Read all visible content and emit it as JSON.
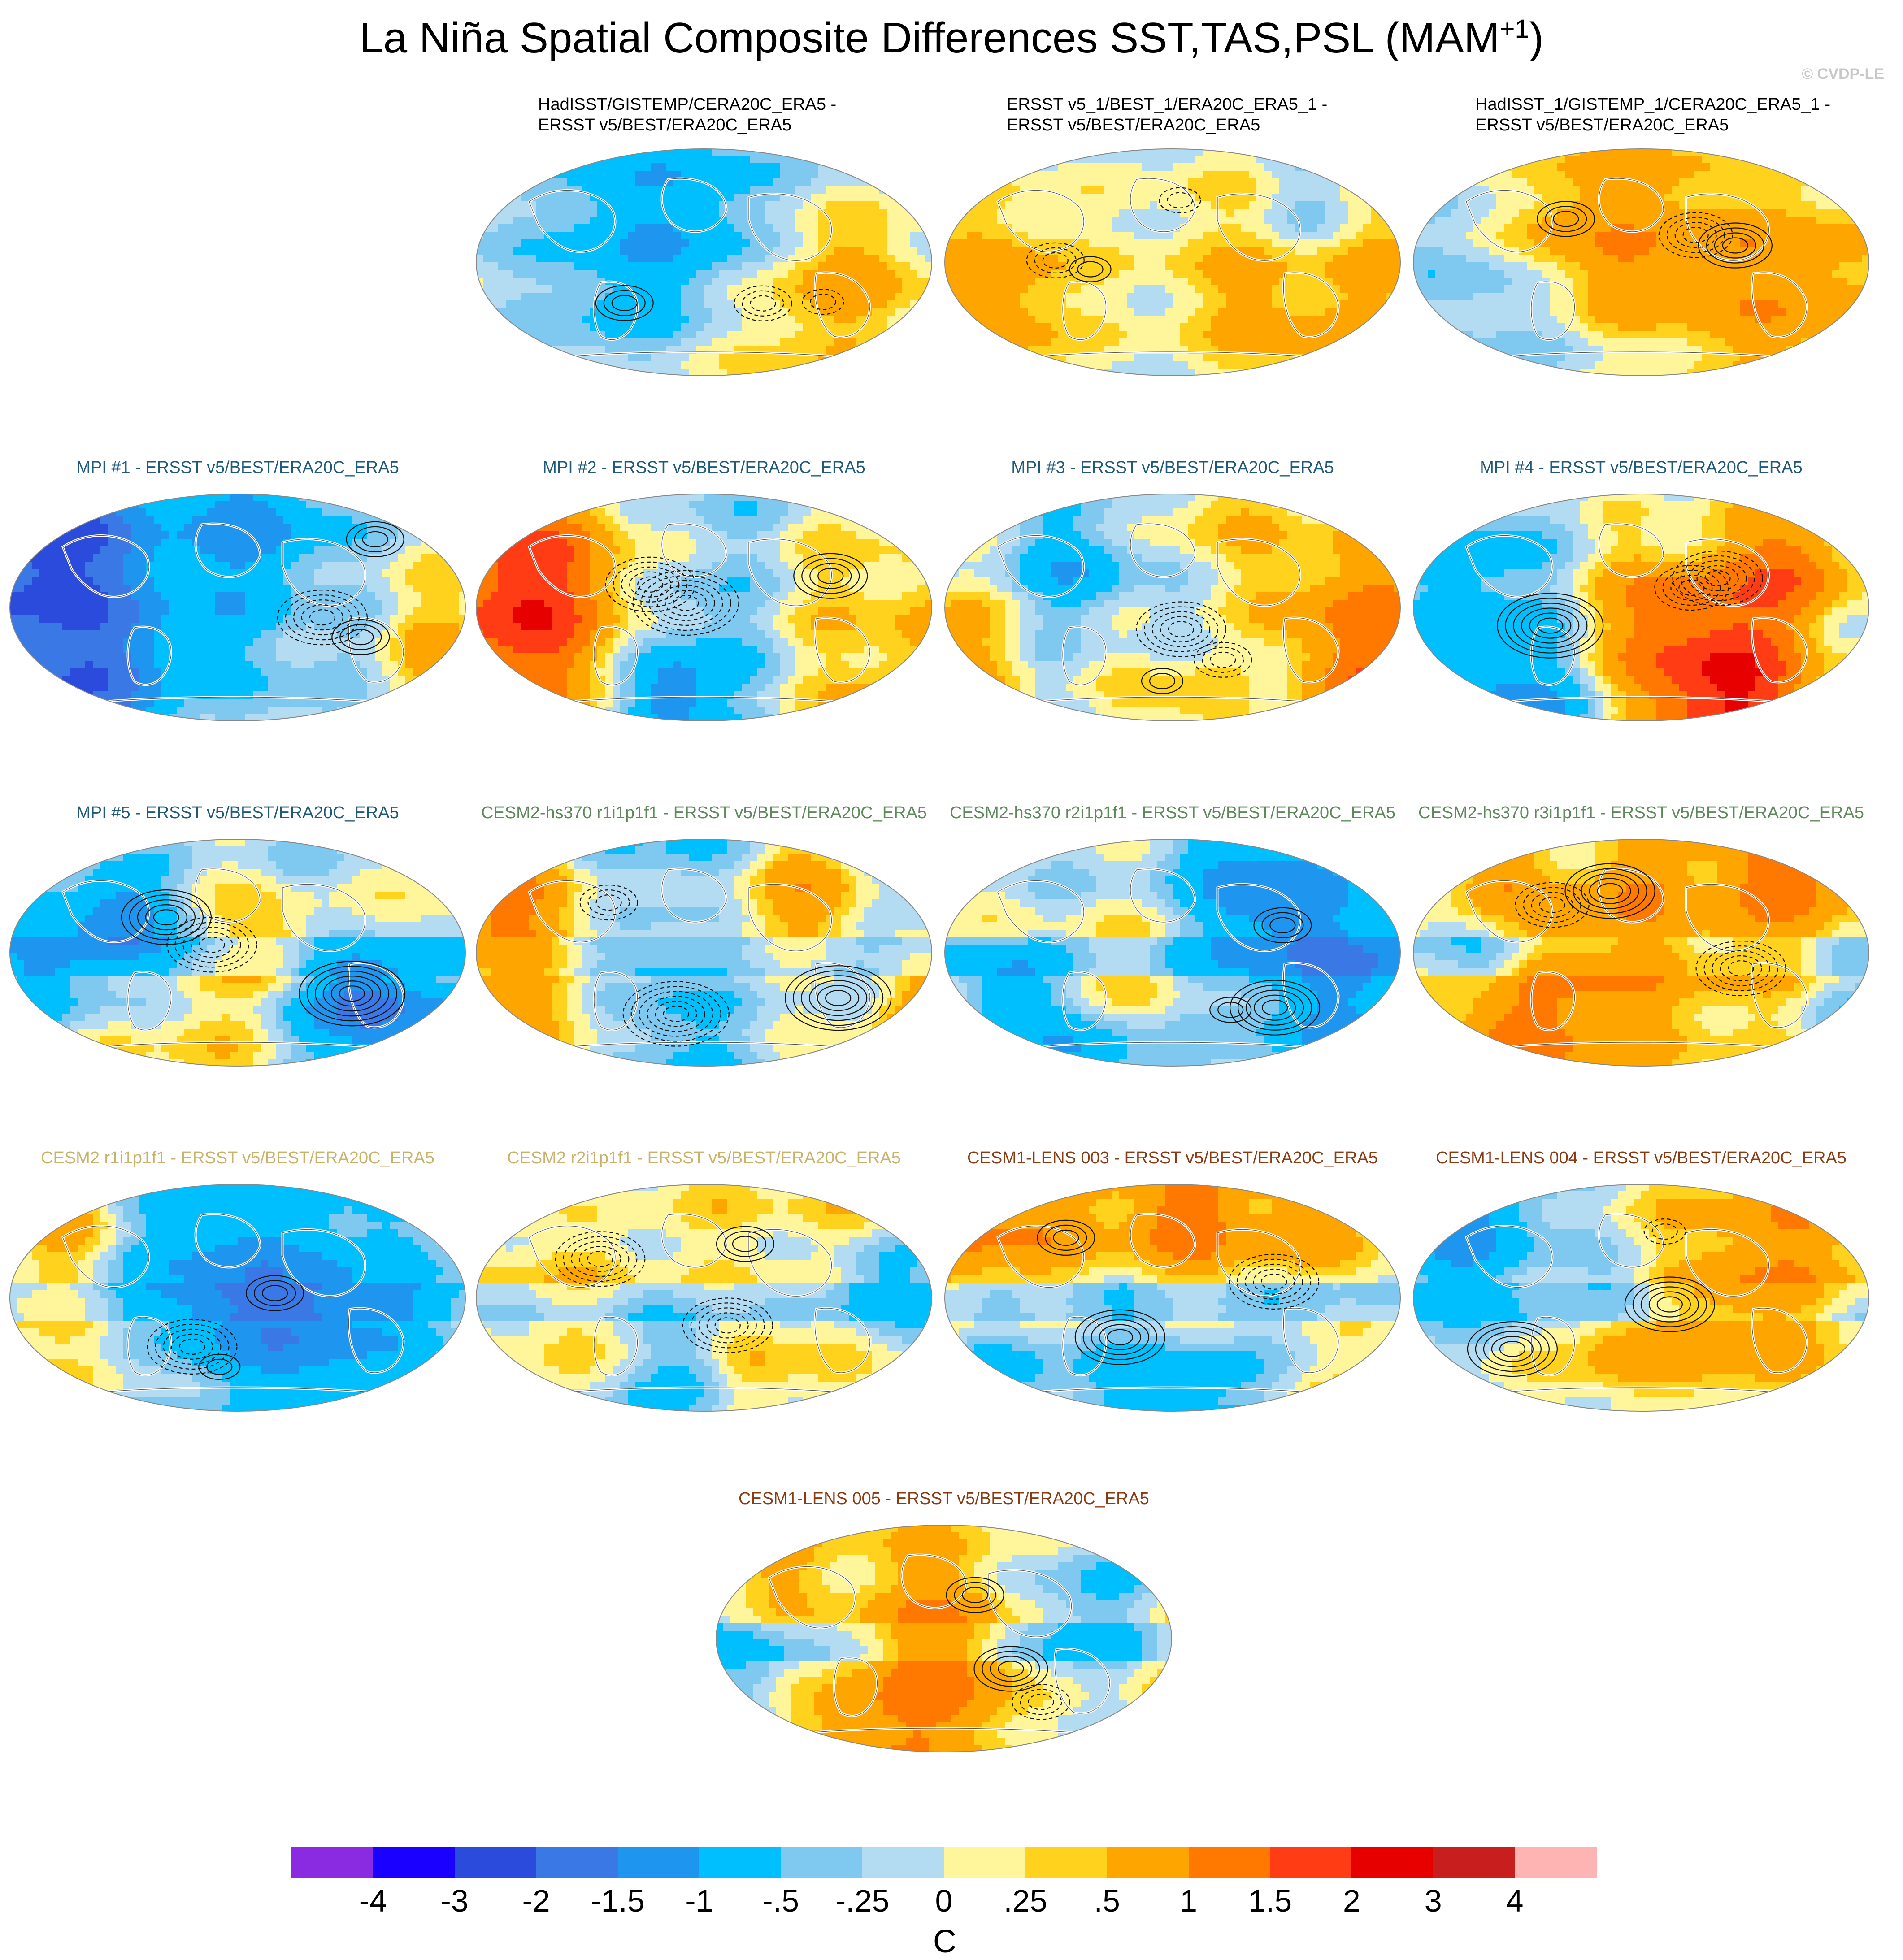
{
  "title": {
    "main": "La Niña Spatial Composite Differences SST,TAS,PSL (MAM",
    "sup": "+1",
    "close": ")"
  },
  "watermark": "© CVDP-LE",
  "panels": [
    {
      "line1": "HadISST/GISTEMP/CERA20C_ERA5 -",
      "line2": "ERSST v5/BEST/ERA20C_ERA5",
      "color": "#000000",
      "seed": 3,
      "amp": 0.45
    },
    {
      "line1": "ERSST v5_1/BEST_1/ERA20C_ERA5_1 -",
      "line2": "ERSST v5/BEST/ERA20C_ERA5",
      "color": "#000000",
      "seed": 7,
      "amp": 0.5
    },
    {
      "line1": "HadISST_1/GISTEMP_1/CERA20C_ERA5_1 -",
      "line2": "ERSST v5/BEST/ERA20C_ERA5",
      "color": "#000000",
      "seed": 11,
      "amp": 0.45
    },
    {
      "line1": "MPI #1 - ERSST v5/BEST/ERA20C_ERA5",
      "line2": "",
      "color": "#1f5a7a",
      "seed": 13,
      "amp": 0.9
    },
    {
      "line1": "MPI #2 - ERSST v5/BEST/ERA20C_ERA5",
      "line2": "",
      "color": "#1f5a7a",
      "seed": 17,
      "amp": 0.9
    },
    {
      "line1": "MPI #3 - ERSST v5/BEST/ERA20C_ERA5",
      "line2": "",
      "color": "#1f5a7a",
      "seed": 19,
      "amp": 0.9
    },
    {
      "line1": "MPI #4 - ERSST v5/BEST/ERA20C_ERA5",
      "line2": "",
      "color": "#1f5a7a",
      "seed": 23,
      "amp": 0.9
    },
    {
      "line1": "MPI #5 - ERSST v5/BEST/ERA20C_ERA5",
      "line2": "",
      "color": "#1f5a7a",
      "seed": 29,
      "amp": 0.95
    },
    {
      "line1": "CESM2-hs370 r1i1p1f1 - ERSST v5/BEST/ERA20C_ERA5",
      "line2": "",
      "color": "#5d8a5a",
      "seed": 31,
      "amp": 0.85
    },
    {
      "line1": "CESM2-hs370 r2i1p1f1 - ERSST v5/BEST/ERA20C_ERA5",
      "line2": "",
      "color": "#5d8a5a",
      "seed": 37,
      "amp": 0.85
    },
    {
      "line1": "CESM2-hs370 r3i1p1f1 - ERSST v5/BEST/ERA20C_ERA5",
      "line2": "",
      "color": "#5d8a5a",
      "seed": 41,
      "amp": 0.85
    },
    {
      "line1": "CESM2 r1i1p1f1 - ERSST v5/BEST/ERA20C_ERA5",
      "line2": "",
      "color": "#c9b36a",
      "seed": 43,
      "amp": 0.85
    },
    {
      "line1": "CESM2 r2i1p1f1 - ERSST v5/BEST/ERA20C_ERA5",
      "line2": "",
      "color": "#c9b36a",
      "seed": 47,
      "amp": 0.85
    },
    {
      "line1": "CESM1-LENS 003 - ERSST v5/BEST/ERA20C_ERA5",
      "line2": "",
      "color": "#8b3a12",
      "seed": 53,
      "amp": 0.8
    },
    {
      "line1": "CESM1-LENS 004 - ERSST v5/BEST/ERA20C_ERA5",
      "line2": "",
      "color": "#8b3a12",
      "seed": 59,
      "amp": 0.8
    },
    {
      "line1": "CESM1-LENS 005 - ERSST v5/BEST/ERA20C_ERA5",
      "line2": "",
      "color": "#8b3a12",
      "seed": 61,
      "amp": 0.8
    }
  ],
  "colorbar": {
    "colors": [
      "#8a2be2",
      "#1a00ff",
      "#2a4bdc",
      "#3a78e6",
      "#1e96f0",
      "#00bfff",
      "#7fc8f0",
      "#b3dcf2",
      "#fff59a",
      "#ffd21e",
      "#ffa500",
      "#ff7800",
      "#ff3c14",
      "#e60000",
      "#c81e1e",
      "#ffb4b4"
    ],
    "labels": [
      "-4",
      "-3",
      "-2",
      "-1.5",
      "-1",
      "-.5",
      "-.25",
      "0",
      ".25",
      ".5",
      "1",
      "1.5",
      "2",
      "3",
      "4"
    ],
    "units": "C"
  }
}
